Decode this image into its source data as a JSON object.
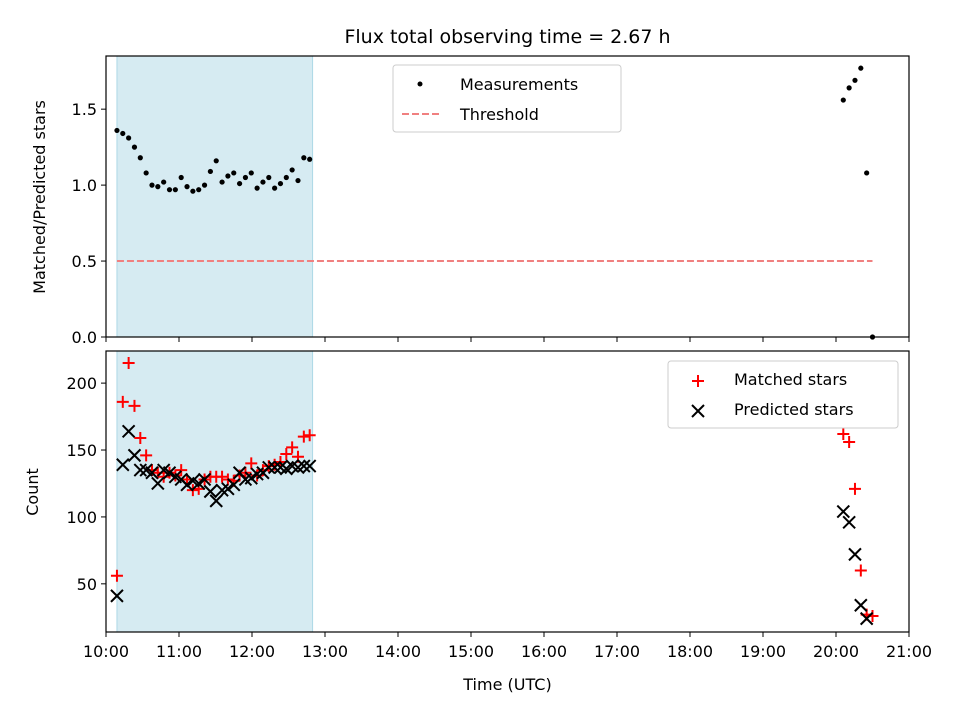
{
  "chart_data": [
    {
      "type": "scatter",
      "title": "Flux total observing time = 2.67 h",
      "ylabel": "Matched/Predicted stars",
      "xlabel": "",
      "x_unit": "hour (UTC)",
      "xlim": [
        10.0,
        21.0
      ],
      "ylim": [
        0.0,
        1.85
      ],
      "yticks": [
        0.0,
        0.5,
        1.0,
        1.5
      ],
      "ytick_labels": [
        "0.0",
        "0.5",
        "1.0",
        "1.5"
      ],
      "shaded_span": {
        "x": [
          10.15,
          12.83
        ],
        "color": "#add8e6"
      },
      "legend_position": "top-center",
      "series": [
        {
          "name": "Measurements",
          "marker": "dot",
          "color": "#000000",
          "x": [
            10.15,
            10.23,
            10.31,
            10.39,
            10.47,
            10.55,
            10.63,
            10.71,
            10.79,
            10.87,
            10.95,
            11.03,
            11.11,
            11.19,
            11.27,
            11.35,
            11.43,
            11.51,
            11.59,
            11.67,
            11.75,
            11.83,
            11.91,
            11.99,
            12.07,
            12.15,
            12.23,
            12.31,
            12.39,
            12.47,
            12.55,
            12.63,
            12.71,
            12.79,
            20.1,
            20.18,
            20.26,
            20.34,
            20.42,
            20.5
          ],
          "y": [
            1.36,
            1.34,
            1.31,
            1.25,
            1.18,
            1.08,
            1.0,
            0.99,
            1.02,
            0.97,
            0.97,
            1.05,
            0.99,
            0.96,
            0.97,
            1.0,
            1.09,
            1.16,
            1.02,
            1.06,
            1.08,
            1.01,
            1.05,
            1.08,
            0.98,
            1.02,
            1.05,
            0.98,
            1.01,
            1.05,
            1.1,
            1.03,
            1.18,
            1.17,
            1.56,
            1.64,
            1.69,
            1.77,
            1.08,
            0.0
          ]
        },
        {
          "name": "Threshold",
          "style": "dashed",
          "color": "#f08080",
          "x": [
            10.15,
            20.5
          ],
          "y": [
            0.5,
            0.5
          ]
        }
      ]
    },
    {
      "type": "scatter",
      "title": "",
      "ylabel": "Count",
      "xlabel": "Time (UTC)",
      "x_unit": "hour (UTC)",
      "xlim": [
        10.0,
        21.0
      ],
      "ylim": [
        14,
        224
      ],
      "xticks": [
        10,
        11,
        12,
        13,
        14,
        15,
        16,
        17,
        18,
        19,
        20,
        21
      ],
      "xtick_labels": [
        "10:00",
        "11:00",
        "12:00",
        "13:00",
        "14:00",
        "15:00",
        "16:00",
        "17:00",
        "18:00",
        "19:00",
        "20:00",
        "21:00"
      ],
      "yticks": [
        50,
        100,
        150,
        200
      ],
      "ytick_labels": [
        "50",
        "100",
        "150",
        "200"
      ],
      "shaded_span": {
        "x": [
          10.15,
          12.83
        ],
        "color": "#add8e6"
      },
      "legend_position": "top-right",
      "series": [
        {
          "name": "Matched stars",
          "marker": "plus",
          "color": "#ff0000",
          "x": [
            10.15,
            10.23,
            10.31,
            10.39,
            10.47,
            10.55,
            10.63,
            10.71,
            10.79,
            10.87,
            10.95,
            11.03,
            11.11,
            11.19,
            11.27,
            11.35,
            11.43,
            11.51,
            11.59,
            11.67,
            11.75,
            11.83,
            11.91,
            11.99,
            12.07,
            12.15,
            12.23,
            12.31,
            12.39,
            12.47,
            12.55,
            12.63,
            12.71,
            12.79,
            20.1,
            20.18,
            20.26,
            20.34,
            20.42,
            20.5
          ],
          "y": [
            56,
            186,
            215,
            183,
            159,
            146,
            135,
            133,
            130,
            133,
            131,
            135,
            128,
            120,
            121,
            128,
            130,
            130,
            130,
            128,
            127,
            131,
            133,
            140,
            131,
            135,
            138,
            139,
            141,
            147,
            152,
            145,
            160,
            161,
            162,
            156,
            121,
            60,
            27,
            26
          ]
        },
        {
          "name": "Predicted stars",
          "marker": "x",
          "color": "#000000",
          "x": [
            10.15,
            10.23,
            10.31,
            10.39,
            10.47,
            10.55,
            10.63,
            10.71,
            10.79,
            10.87,
            10.95,
            11.03,
            11.11,
            11.19,
            11.27,
            11.35,
            11.43,
            11.51,
            11.59,
            11.67,
            11.75,
            11.83,
            11.91,
            11.99,
            12.07,
            12.15,
            12.23,
            12.31,
            12.39,
            12.47,
            12.55,
            12.63,
            12.71,
            12.79,
            20.1,
            20.18,
            20.26,
            20.34,
            20.42
          ],
          "y": [
            41,
            139,
            164,
            146,
            135,
            135,
            133,
            125,
            135,
            133,
            130,
            128,
            124,
            127,
            125,
            128,
            119,
            112,
            120,
            121,
            124,
            133,
            128,
            129,
            132,
            133,
            137,
            137,
            137,
            136,
            138,
            137,
            138,
            138,
            104,
            96,
            72,
            34,
            24
          ]
        }
      ]
    }
  ]
}
